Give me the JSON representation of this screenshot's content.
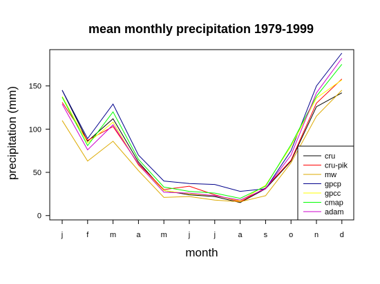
{
  "chart_data": {
    "type": "line",
    "title": "mean monthly precipitation 1979-1999",
    "xlabel": "month",
    "ylabel": "precipitation (mm)",
    "categories": [
      "j",
      "f",
      "m",
      "a",
      "m",
      "j",
      "j",
      "a",
      "s",
      "o",
      "n",
      "d"
    ],
    "yticks": [
      "0",
      "50",
      "100",
      "150"
    ],
    "ylim": [
      -5,
      192
    ],
    "grid": false,
    "legend_position": "bottom-right",
    "series": [
      {
        "name": "cru",
        "color": "#000000",
        "values": [
          145,
          86,
          112,
          62,
          29,
          24,
          22,
          15,
          31,
          63,
          126,
          142
        ]
      },
      {
        "name": "cru-pik",
        "color": "#ff0000",
        "values": [
          131,
          87,
          103,
          60,
          30,
          34,
          24,
          16,
          32,
          64,
          130,
          158
        ]
      },
      {
        "name": "mw",
        "color": "#ddaa00",
        "values": [
          110,
          63,
          86,
          52,
          21,
          22,
          18,
          16,
          23,
          61,
          115,
          145
        ]
      },
      {
        "name": "gpcp",
        "color": "#00008b",
        "values": [
          145,
          89,
          129,
          70,
          40,
          37,
          36,
          28,
          31,
          75,
          150,
          188
        ]
      },
      {
        "name": "gpcc",
        "color": "#ffff00",
        "values": [
          138,
          84,
          108,
          58,
          29,
          25,
          23,
          17,
          35,
          80,
          136,
          157
        ]
      },
      {
        "name": "cmap",
        "color": "#00ff00",
        "values": [
          137,
          81,
          120,
          65,
          33,
          28,
          26,
          20,
          34,
          82,
          138,
          175
        ]
      },
      {
        "name": "adam",
        "color": "#cc00cc",
        "values": [
          129,
          76,
          105,
          59,
          27,
          26,
          23,
          18,
          31,
          70,
          142,
          182
        ]
      }
    ]
  }
}
